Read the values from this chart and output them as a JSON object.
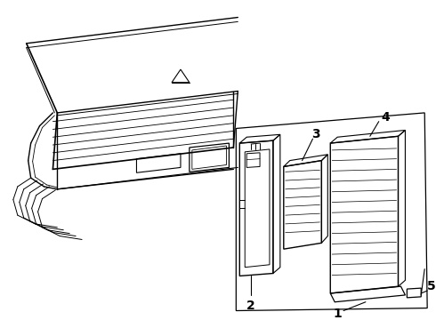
{
  "bg_color": "#ffffff",
  "line_color": "#000000",
  "fig_width": 4.9,
  "fig_height": 3.6,
  "dpi": 100,
  "car_color": "#000000",
  "part_color": "#000000"
}
